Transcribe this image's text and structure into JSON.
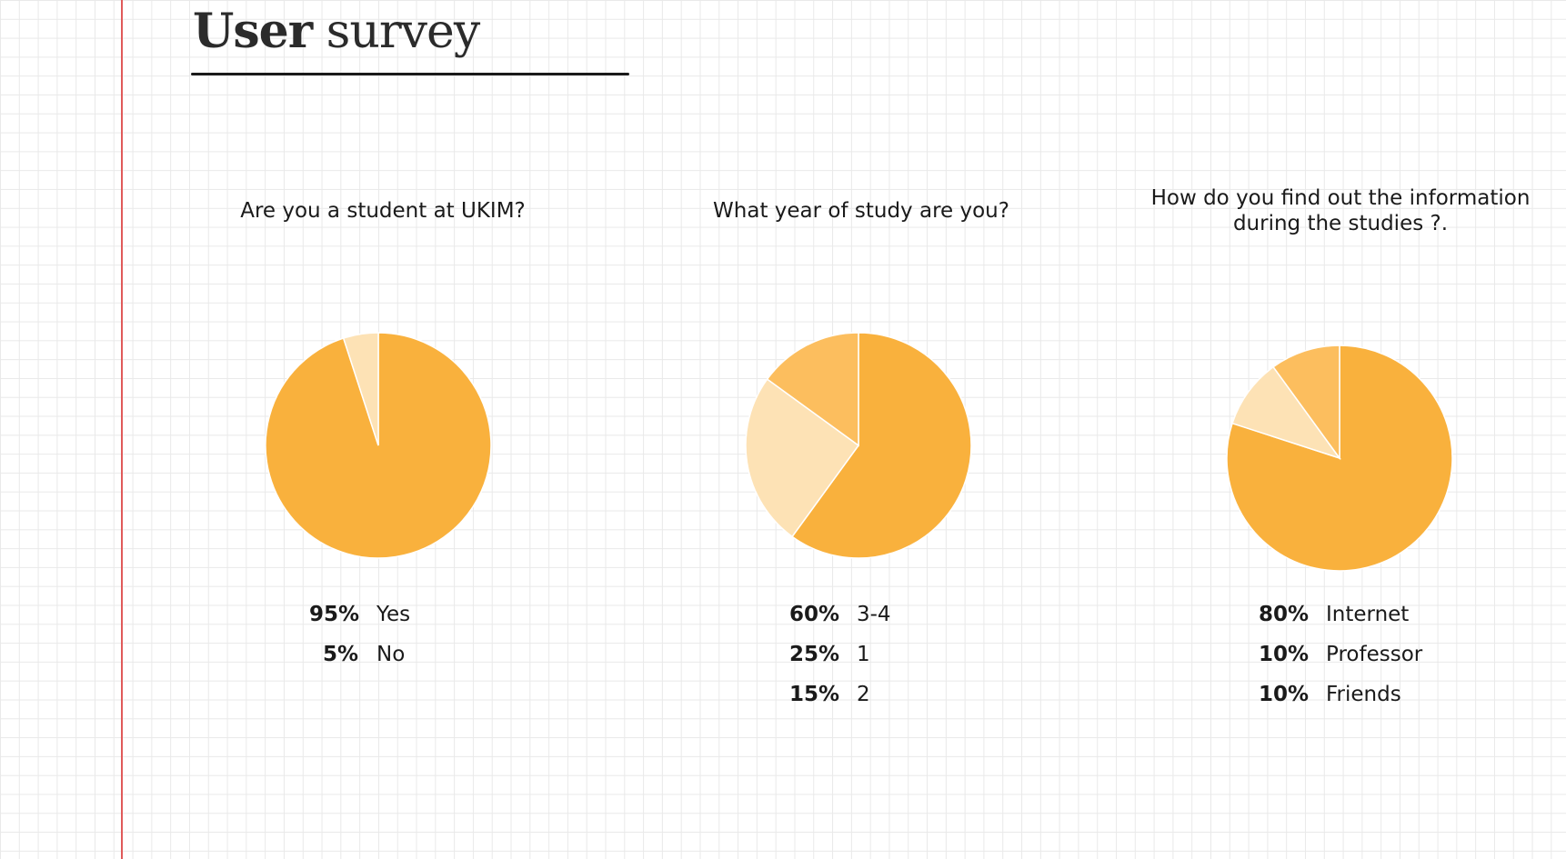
{
  "page": {
    "title_bold": "User",
    "title_light": "survey"
  },
  "colors": {
    "primary": "#F9B13D",
    "light": "#FDE2B5",
    "medium": "#FCBE5E",
    "margin_line": "#E05A5A"
  },
  "chart_data": [
    {
      "type": "pie",
      "title": "Are you a student at UKIM?",
      "slices": [
        {
          "label": "Yes",
          "pct_text": "95%",
          "value": 95,
          "color": "#F9B13D"
        },
        {
          "label": "No",
          "pct_text": "5%",
          "value": 5,
          "color": "#FDE2B5"
        }
      ]
    },
    {
      "type": "pie",
      "title": "What year of study are you?",
      "slices": [
        {
          "label": "3-4",
          "pct_text": "60%",
          "value": 60,
          "color": "#F9B13D"
        },
        {
          "label": "1",
          "pct_text": "25%",
          "value": 25,
          "color": "#FDE2B5"
        },
        {
          "label": "2",
          "pct_text": "15%",
          "value": 15,
          "color": "#FCBE5E"
        }
      ]
    },
    {
      "type": "pie",
      "title": "How do you find out the information during the studies ?.",
      "slices": [
        {
          "label": "Internet",
          "pct_text": "80%",
          "value": 80,
          "color": "#F9B13D"
        },
        {
          "label": "Professor",
          "pct_text": "10%",
          "value": 10,
          "color": "#FDE2B5"
        },
        {
          "label": "Friends",
          "pct_text": "10%",
          "value": 10,
          "color": "#FCBE5E"
        }
      ]
    }
  ]
}
